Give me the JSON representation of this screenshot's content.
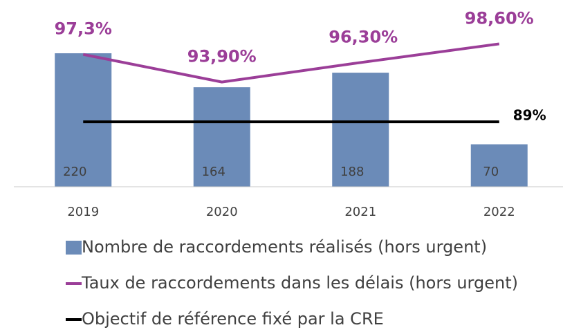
{
  "chart_data": {
    "type": "bar-line",
    "categories": [
      "2019",
      "2020",
      "2021",
      "2022"
    ],
    "ylim": [
      0,
      285
    ],
    "y2lim": [
      81,
      102.3
    ],
    "series": [
      {
        "name": "Nombre de raccordements réalisés (hors urgent)",
        "type": "bar",
        "color": "#6b8bb8",
        "values": [
          220,
          164,
          188,
          70
        ]
      },
      {
        "name": "Taux de raccordements dans les délais (hors urgent)",
        "type": "line",
        "axis": "y2",
        "color": "#9b3e98",
        "values": [
          97.3,
          93.9,
          96.3,
          98.6
        ],
        "value_labels": [
          "97,3%",
          "93,90%",
          "96,30%",
          "98,60%"
        ]
      },
      {
        "name": "Objectif de référence fixé par la CRE",
        "type": "line",
        "axis": "y2",
        "color": "#000000",
        "values": [
          89,
          89,
          89,
          89
        ],
        "label": "89%"
      }
    ]
  }
}
